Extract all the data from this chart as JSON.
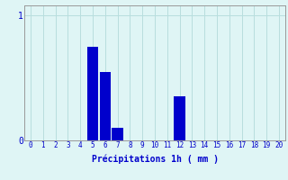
{
  "values": [
    0,
    0,
    0,
    0,
    0,
    0.75,
    0.55,
    0.1,
    0,
    0,
    0,
    0,
    0.35,
    0,
    0,
    0,
    0,
    0,
    0,
    0,
    0
  ],
  "x_labels": [
    "0",
    "1",
    "2",
    "3",
    "4",
    "5",
    "6",
    "7",
    "8",
    "9",
    "10",
    "11",
    "12",
    "13",
    "14",
    "15",
    "16",
    "17",
    "18",
    "19",
    "20"
  ],
  "bar_color": "#0000cc",
  "background_color": "#dff5f5",
  "grid_color": "#b8dede",
  "xlabel": "Précipitations 1h ( mm )",
  "ylim": [
    0,
    1.08
  ],
  "xlim": [
    -0.5,
    20.5
  ],
  "yticks": [
    0,
    1
  ],
  "ytick_labels": [
    "0",
    "1"
  ],
  "xlabel_fontsize": 7,
  "ytick_fontsize": 7,
  "xtick_fontsize": 5.5,
  "bar_width": 0.9
}
